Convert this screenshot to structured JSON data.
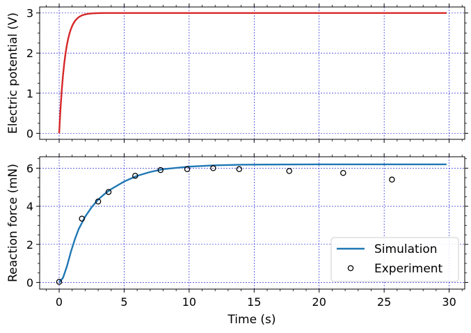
{
  "chart_data": [
    {
      "type": "line",
      "id": "potential",
      "title": "",
      "xlabel": "",
      "ylabel": "Electric potential (V)",
      "xlim": [
        -1.5,
        31.2
      ],
      "ylim": [
        -0.15,
        3.15
      ],
      "xticks": [
        0,
        5,
        10,
        15,
        20,
        25,
        30
      ],
      "xtick_labels": [
        "",
        "",
        "",
        "",
        "",
        "",
        ""
      ],
      "yticks": [
        0,
        1,
        2,
        3
      ],
      "ytick_labels": [
        "0",
        "1",
        "2",
        "3"
      ],
      "grid": true,
      "series": [
        {
          "name": "Electric potential",
          "color": "#d62728",
          "model": "3*(1-exp(-t/0.45))",
          "t": [
            0,
            0.25,
            0.5,
            0.75,
            1.0,
            1.25,
            1.5,
            1.75,
            2.0,
            2.5,
            3.0,
            4.0,
            5.0,
            8.0,
            12.0,
            16.0,
            20.0,
            24.0,
            28.0,
            29.8
          ],
          "values": [
            0,
            1.28,
            2.02,
            2.43,
            2.67,
            2.81,
            2.89,
            2.94,
            2.96,
            2.99,
            3.0,
            3.0,
            3.0,
            3.0,
            3.0,
            3.0,
            3.0,
            3.0,
            3.0,
            3.0
          ]
        }
      ]
    },
    {
      "type": "line",
      "id": "force",
      "title": "",
      "xlabel": "Time (s)",
      "ylabel": "Reaction force (mN)",
      "xlim": [
        -1.5,
        31.2
      ],
      "ylim": [
        -0.35,
        6.6
      ],
      "xticks": [
        0,
        5,
        10,
        15,
        20,
        25,
        30
      ],
      "xtick_labels": [
        "0",
        "5",
        "10",
        "15",
        "20",
        "25",
        "30"
      ],
      "yticks": [
        0,
        2,
        4,
        6
      ],
      "ytick_labels": [
        "0",
        "2",
        "4",
        "6"
      ],
      "grid": true,
      "legend_position": "bottom-right",
      "series": [
        {
          "name": "Simulation",
          "kind": "line",
          "color": "#1f77b4",
          "t": [
            0,
            0.3,
            0.6,
            0.9,
            1.2,
            1.5,
            2.0,
            2.5,
            3.0,
            3.5,
            4.0,
            5.0,
            6.0,
            7.0,
            8.0,
            10.0,
            12.0,
            14.0,
            16.0,
            20.0,
            24.0,
            28.0,
            29.8
          ],
          "values": [
            0,
            0.25,
            0.85,
            1.6,
            2.25,
            2.8,
            3.45,
            3.95,
            4.35,
            4.65,
            4.9,
            5.3,
            5.6,
            5.8,
            5.95,
            6.08,
            6.15,
            6.18,
            6.19,
            6.2,
            6.2,
            6.2,
            6.2
          ]
        },
        {
          "name": "Experiment",
          "kind": "scatter",
          "color": "#000000",
          "t": [
            0,
            1.75,
            3.0,
            3.8,
            5.85,
            7.8,
            9.85,
            11.85,
            13.85,
            17.7,
            21.85,
            25.6
          ],
          "values": [
            0.03,
            3.35,
            4.25,
            4.75,
            5.6,
            5.9,
            5.95,
            6.0,
            5.95,
            5.85,
            5.75,
            5.4
          ]
        }
      ]
    }
  ],
  "legend": {
    "items": [
      {
        "label": "Simulation",
        "kind": "line",
        "color": "#1f77b4"
      },
      {
        "label": "Experiment",
        "kind": "marker",
        "color": "#000000"
      }
    ]
  },
  "colors": {
    "grid": "#0000cc",
    "axes": "#000000",
    "background": "#ffffff"
  }
}
